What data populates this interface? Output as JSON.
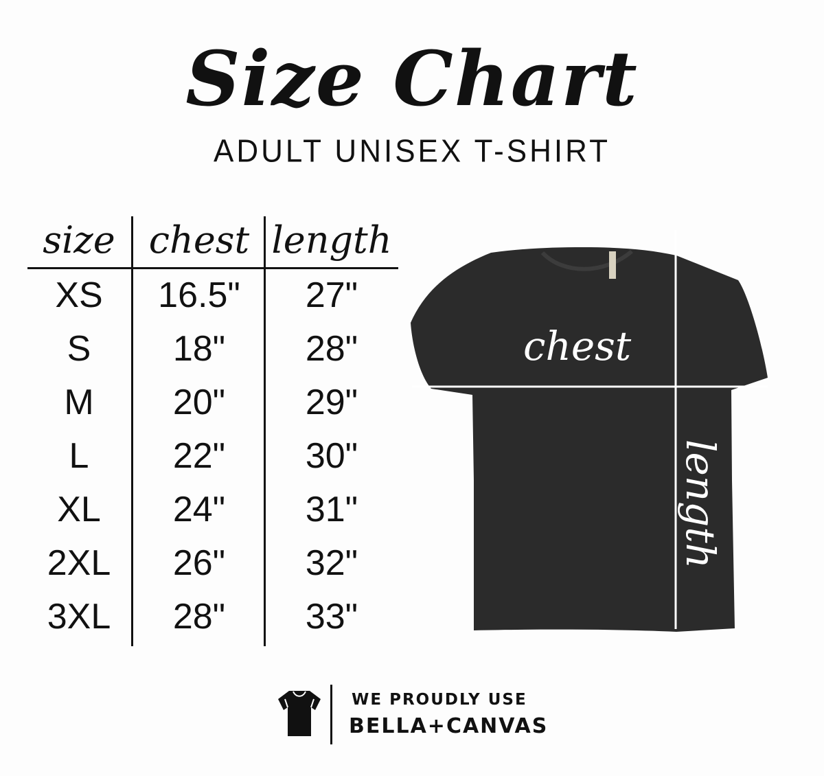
{
  "title": "Size Chart",
  "subtitle": "ADULT UNISEX T-SHIRT",
  "table": {
    "headers": [
      "size",
      "chest",
      "length"
    ],
    "rows": [
      [
        "XS",
        "16.5\"",
        "27\""
      ],
      [
        "S",
        "18\"",
        "28\""
      ],
      [
        "M",
        "20\"",
        "29\""
      ],
      [
        "L",
        "22\"",
        "30\""
      ],
      [
        "XL",
        "24\"",
        "31\""
      ],
      [
        "2XL",
        "26\"",
        "32\""
      ],
      [
        "3XL",
        "28\"",
        "33\""
      ]
    ]
  },
  "diagram": {
    "chest_label": "chest",
    "length_label": "length",
    "shirt_color": "#2b2b2b"
  },
  "footer": {
    "line1": "WE PROUDLY USE",
    "line2": "BELLA+CANVAS",
    "icon": "tshirt-icon"
  }
}
